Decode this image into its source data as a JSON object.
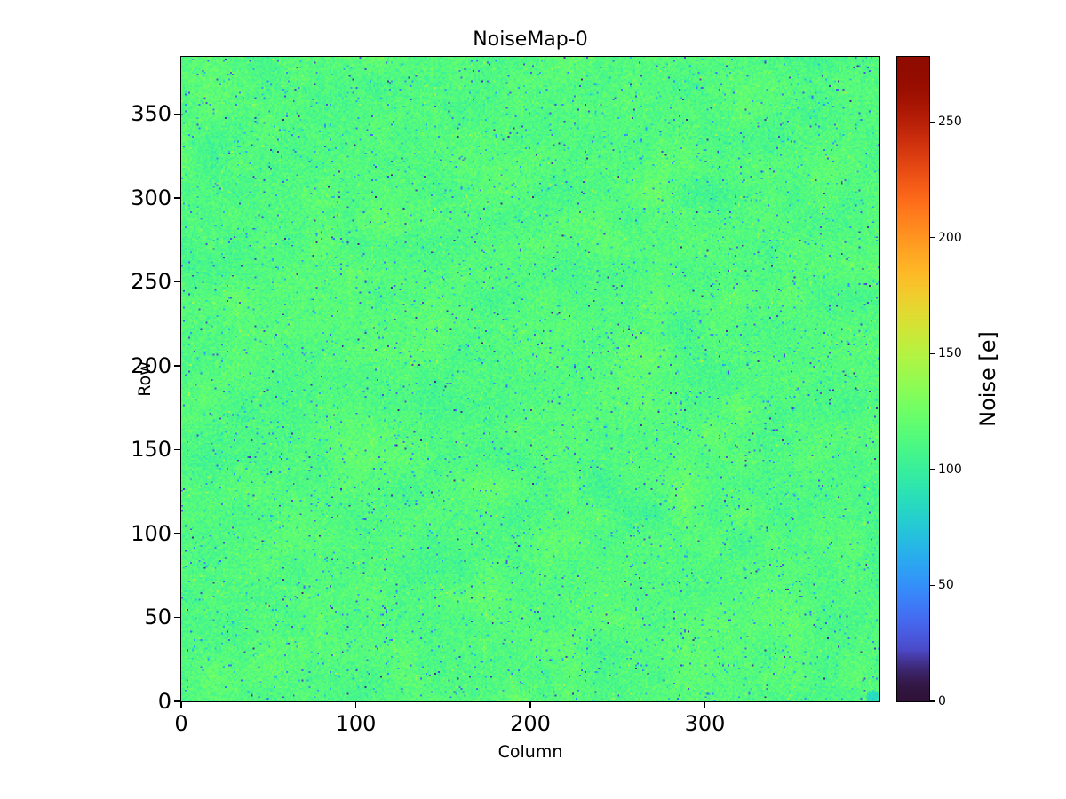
{
  "chart_data": {
    "type": "heatmap",
    "title": "NoiseMap-0",
    "xlabel": "Column",
    "ylabel": "Row",
    "colorbar_label": "Noise [e]",
    "x_range": [
      0,
      400
    ],
    "y_range": [
      0,
      384
    ],
    "n_cols": 400,
    "n_rows": 384,
    "x_ticks": [
      0,
      100,
      200,
      300
    ],
    "y_ticks": [
      0,
      50,
      100,
      150,
      200,
      250,
      300,
      350
    ],
    "colorbar_ticks": [
      0,
      50,
      100,
      150,
      200,
      250
    ],
    "value_range": [
      0,
      278
    ],
    "colormap": "turbo",
    "grid": false,
    "background_color": "#ffffff",
    "distribution": {
      "mean_noise_e": 113,
      "sigma_noise_e": 7,
      "low_outlier_fraction": 0.022,
      "low_outlier_range_e": [
        15,
        85
      ],
      "high_tail_fraction": 0.004,
      "high_tail_range_e": [
        130,
        150
      ]
    },
    "corner_feature": {
      "description": "small cyan low-noise cluster in bottom-right corner",
      "center_col": 396,
      "center_row": 2,
      "radius_px": 4,
      "value_e": 88
    }
  }
}
